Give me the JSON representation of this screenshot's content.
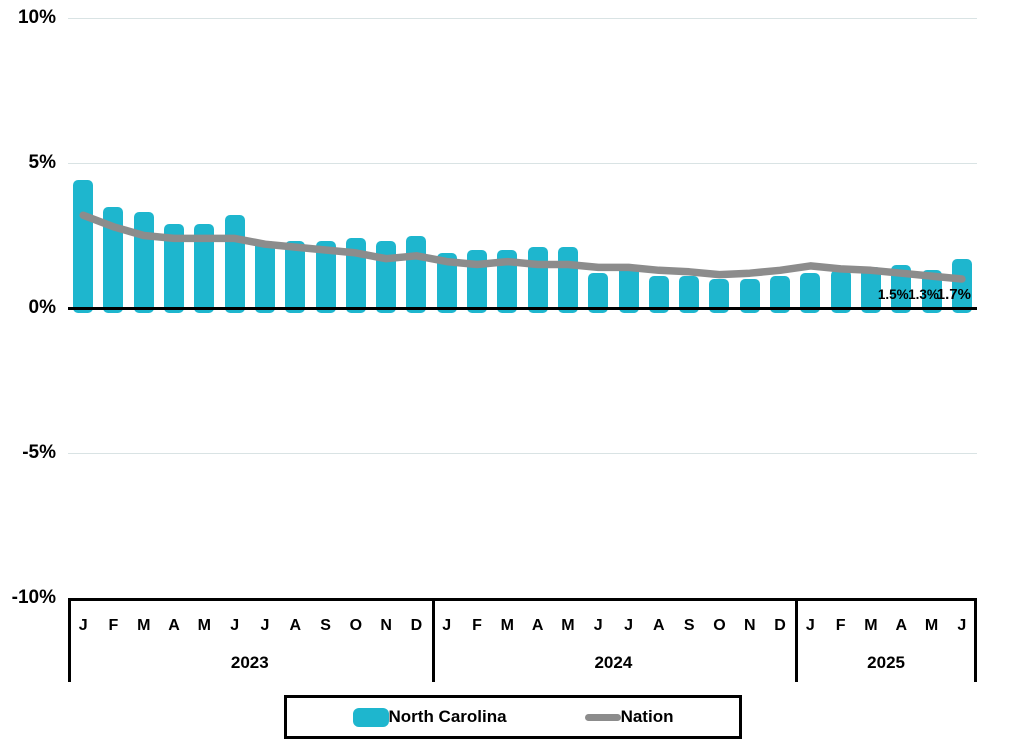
{
  "chart_data": {
    "type": "bar",
    "title": "",
    "ylabel": "",
    "xlabel": "",
    "ylim": [
      -10,
      10
    ],
    "grid": true,
    "legend_position": "bottom",
    "yticks": [
      {
        "label": "10%",
        "value": 10
      },
      {
        "label": "5%",
        "value": 5
      },
      {
        "label": "0%",
        "value": 0
      },
      {
        "label": "-5%",
        "value": -5
      },
      {
        "label": "-10%",
        "value": -10
      }
    ],
    "years": [
      {
        "label": "2023",
        "months": [
          "J",
          "F",
          "M",
          "A",
          "M",
          "J",
          "J",
          "A",
          "S",
          "O",
          "N",
          "D"
        ]
      },
      {
        "label": "2024",
        "months": [
          "J",
          "F",
          "M",
          "A",
          "M",
          "J",
          "J",
          "A",
          "S",
          "O",
          "N",
          "D"
        ]
      },
      {
        "label": "2025",
        "months": [
          "J",
          "F",
          "M",
          "A",
          "M",
          "J"
        ]
      }
    ],
    "series": [
      {
        "name": "North Carolina",
        "type": "bar",
        "color": "#1eb6ce",
        "values": [
          4.4,
          3.5,
          3.3,
          2.9,
          2.9,
          3.2,
          2.3,
          2.3,
          2.3,
          2.4,
          2.3,
          2.5,
          1.9,
          2.0,
          2.0,
          2.1,
          2.1,
          1.2,
          1.5,
          1.1,
          1.1,
          1.0,
          1.0,
          1.1,
          1.2,
          1.3,
          1.4,
          1.5,
          1.3,
          1.7
        ]
      },
      {
        "name": "Nation",
        "type": "line",
        "color": "#8c8c8c",
        "values": [
          3.2,
          2.8,
          2.5,
          2.4,
          2.4,
          2.4,
          2.2,
          2.1,
          2.0,
          1.9,
          1.7,
          1.8,
          1.6,
          1.5,
          1.6,
          1.5,
          1.5,
          1.4,
          1.4,
          1.3,
          1.25,
          1.15,
          1.2,
          1.3,
          1.45,
          1.35,
          1.3,
          1.2,
          1.1,
          1.0
        ]
      }
    ],
    "data_labels": [
      {
        "index": 27,
        "text": "1.5%",
        "emphasis": false
      },
      {
        "index": 28,
        "text": "1.3%",
        "emphasis": false
      },
      {
        "index": 29,
        "text": "1.7%",
        "emphasis": true
      }
    ]
  },
  "legend": {
    "items": [
      {
        "label": "North Carolina",
        "swatch": "bar"
      },
      {
        "label": "Nation",
        "swatch": "line"
      }
    ]
  },
  "colors": {
    "bar": "#1eb6ce",
    "line": "#8c8c8c",
    "gridline": "#d9e3e4",
    "axis": "#000000",
    "background": "#ffffff"
  }
}
